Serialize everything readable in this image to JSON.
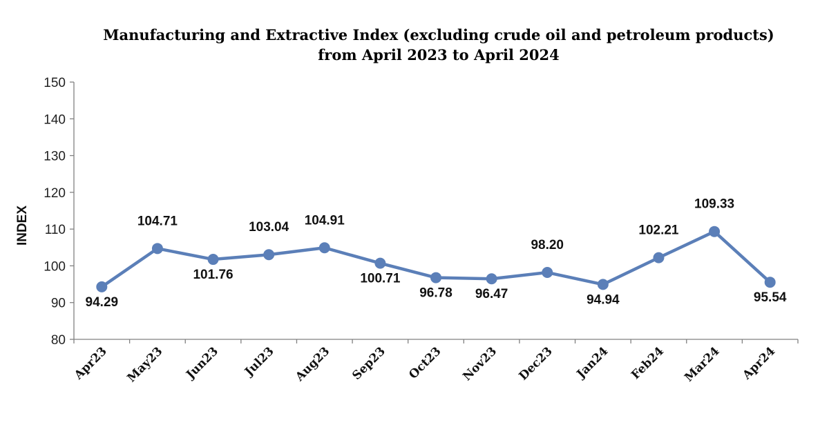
{
  "chart_data": {
    "type": "line",
    "title_line1": "Manufacturing and Extractive Index (excluding crude oil and petroleum products)",
    "title_line2": "from April 2023 to April 2024",
    "xlabel": "",
    "ylabel": "INDEX",
    "ylim": [
      80,
      150
    ],
    "yticks": [
      "80",
      "90",
      "100",
      "110",
      "120",
      "130",
      "140",
      "150"
    ],
    "categories": [
      "Apr23",
      "May23",
      "Jun23",
      "Jul23",
      "Aug23",
      "Sep23",
      "Oct23",
      "Nov23",
      "Dec23",
      "Jan24",
      "Feb24",
      "Mar24",
      "Apr24"
    ],
    "series": [
      {
        "values": [
          94.29,
          104.71,
          101.76,
          103.04,
          104.91,
          100.71,
          96.78,
          96.47,
          98.2,
          94.94,
          102.21,
          109.33,
          95.54
        ],
        "labels": [
          "94.29",
          "104.71",
          "101.76",
          "103.04",
          "104.91",
          "100.71",
          "96.78",
          "96.47",
          "98.20",
          "94.94",
          "102.21",
          "109.33",
          "95.54"
        ],
        "label_side": [
          "below",
          "above",
          "below",
          "above",
          "above",
          "below",
          "below",
          "below",
          "above",
          "below",
          "above",
          "above",
          "below"
        ],
        "color": "#5b7fb8"
      }
    ],
    "grid": false,
    "legend": "none"
  }
}
